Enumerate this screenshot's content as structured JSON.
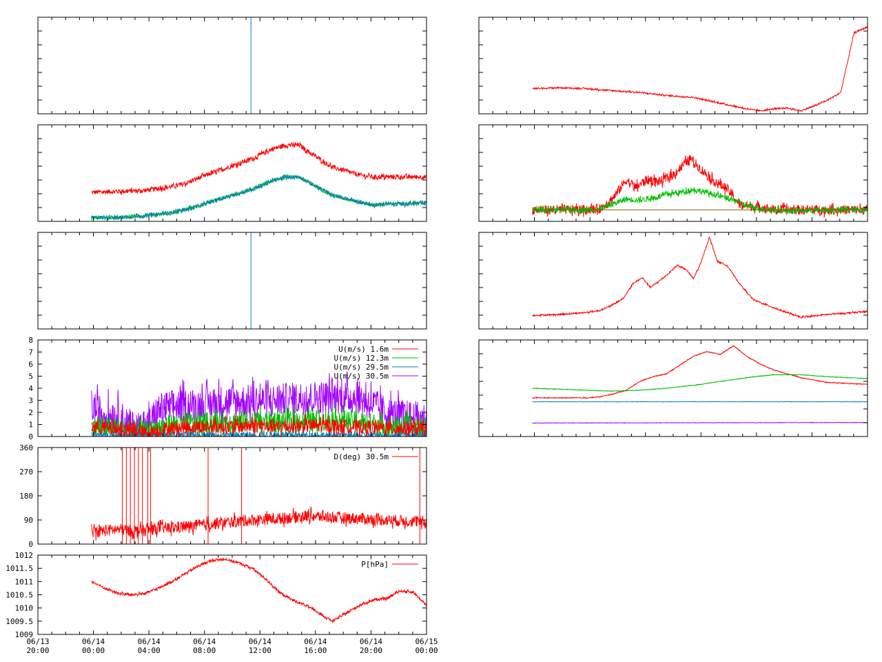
{
  "chart_data": [
    {
      "id": "p1",
      "type": "line",
      "series": [
        {
          "color": "#0080c0",
          "segments": [
            [
              [
                15.9,
                0
              ],
              [
                15.9,
                1
              ]
            ]
          ]
        }
      ],
      "xlim": [
        0,
        29
      ],
      "ylim": [
        0,
        1
      ]
    },
    {
      "id": "p2",
      "type": "line",
      "series": [
        {
          "color": "#ff0000",
          "noise": 0.025,
          "x": [
            4,
            6,
            8,
            10,
            11,
            12,
            14,
            16,
            17.5,
            18.5,
            19.5,
            20.5,
            22,
            24,
            25,
            26,
            27,
            29
          ],
          "y": [
            0.3,
            0.31,
            0.32,
            0.36,
            0.39,
            0.45,
            0.55,
            0.65,
            0.75,
            0.79,
            0.79,
            0.69,
            0.56,
            0.48,
            0.46,
            0.46,
            0.46,
            0.46
          ]
        },
        {
          "color": "#00c000",
          "noise": 0.02,
          "x": [
            4,
            6,
            8,
            10,
            11,
            12,
            14,
            16,
            17.5,
            18.5,
            19.5,
            20.5,
            22,
            24,
            25,
            26,
            27,
            29
          ],
          "y": [
            0.04,
            0.04,
            0.06,
            0.09,
            0.12,
            0.16,
            0.25,
            0.33,
            0.42,
            0.46,
            0.46,
            0.38,
            0.27,
            0.2,
            0.17,
            0.18,
            0.18,
            0.19
          ]
        },
        {
          "color": "#0080c0",
          "noise": 0.02,
          "x": [
            4,
            6,
            8,
            10,
            11,
            12,
            14,
            16,
            17.5,
            18.5,
            19.5,
            20.5,
            22,
            24,
            25,
            26,
            27,
            29
          ],
          "y": [
            0.04,
            0.04,
            0.06,
            0.09,
            0.12,
            0.16,
            0.25,
            0.33,
            0.42,
            0.46,
            0.46,
            0.38,
            0.27,
            0.2,
            0.17,
            0.18,
            0.18,
            0.19
          ]
        }
      ],
      "xlim": [
        0,
        29
      ],
      "ylim": [
        0,
        1
      ]
    },
    {
      "id": "p3",
      "type": "line",
      "series": [
        {
          "color": "#0080c0",
          "segments": [
            [
              [
                15.9,
                0
              ],
              [
                15.9,
                1
              ]
            ]
          ]
        }
      ],
      "xlim": [
        0,
        29
      ],
      "ylim": [
        0,
        1
      ]
    },
    {
      "id": "p4",
      "type": "line",
      "ylim": [
        0,
        8
      ],
      "xlim": [
        0,
        29
      ],
      "yticks": [
        "0",
        "1",
        "2",
        "3",
        "4",
        "5",
        "6",
        "7",
        "8"
      ],
      "legend": [
        "U(m/s)  1.6m",
        "U(m/s) 12.3m",
        "U(m/s) 29.5m",
        "U(m/s) 30.5m"
      ],
      "legend_position": "top-right",
      "series": [
        {
          "name": "U(m/s) 30.5m",
          "color": "#a000ff",
          "noise": 1.4,
          "x": [
            4,
            5,
            6,
            7,
            8,
            9,
            10,
            12,
            14,
            16,
            18,
            20,
            22,
            24,
            25,
            26,
            29
          ],
          "y": [
            2.5,
            1.8,
            1.7,
            0.8,
            0.6,
            2.2,
            2.5,
            2.6,
            2.9,
            2.9,
            3.0,
            3.2,
            3.3,
            3.2,
            2.7,
            1.9,
            1.4
          ]
        },
        {
          "name": "U(m/s) 12.3m",
          "color": "#00c000",
          "noise": 0.9,
          "x": [
            4,
            6,
            8,
            10,
            12,
            14,
            16,
            18,
            20,
            22,
            24,
            26,
            29
          ],
          "y": [
            0.8,
            0.7,
            0.4,
            1.0,
            1.1,
            1.2,
            1.3,
            1.2,
            1.3,
            1.4,
            1.2,
            0.9,
            0.7
          ]
        },
        {
          "name": "U(m/s) 29.5m",
          "color": "#0080c0",
          "noise": 0.3,
          "x": [
            4,
            29
          ],
          "y": [
            0.1,
            0.1
          ]
        },
        {
          "name": "U(m/s)  1.6m",
          "color": "#ff0000",
          "noise": 0.6,
          "x": [
            4,
            6,
            8,
            10,
            12,
            14,
            16,
            18,
            20,
            22,
            24,
            26,
            29
          ],
          "y": [
            0.8,
            0.6,
            0.3,
            0.7,
            0.8,
            0.8,
            0.9,
            0.8,
            0.9,
            0.9,
            0.8,
            0.7,
            0.6
          ]
        }
      ]
    },
    {
      "id": "p5",
      "type": "line",
      "ylim": [
        0,
        360
      ],
      "xlim": [
        0,
        29
      ],
      "yticks": [
        "0",
        "90",
        "180",
        "270",
        "360"
      ],
      "legend": [
        "D(deg)  30.5m"
      ],
      "legend_position": "top-right",
      "series": [
        {
          "name": "D(deg)  30.5m",
          "color": "#ff0000",
          "noise": 22,
          "x": [
            4,
            5,
            6,
            7,
            8,
            9,
            10,
            12,
            14,
            16,
            18,
            20,
            22,
            24,
            26,
            28,
            29
          ],
          "y": [
            45,
            50,
            55,
            50,
            50,
            60,
            60,
            70,
            80,
            90,
            95,
            105,
            100,
            95,
            90,
            85,
            80
          ]
        }
      ],
      "spikes": [
        [
          6.3,
          360
        ],
        [
          6.6,
          360
        ],
        [
          6.9,
          360
        ],
        [
          7.2,
          360
        ],
        [
          7.5,
          360
        ],
        [
          7.8,
          360
        ],
        [
          8.2,
          360
        ],
        [
          8.4,
          360
        ],
        [
          12.7,
          360
        ],
        [
          15.2,
          360
        ],
        [
          28.5,
          360
        ]
      ]
    },
    {
      "id": "p6",
      "type": "line",
      "ylim": [
        1009,
        1012
      ],
      "xlim": [
        0,
        29
      ],
      "yticks": [
        "1009",
        "1009.5",
        "1010",
        "1010.5",
        "1011",
        "1011.5",
        "1012"
      ],
      "legend": [
        "P[hPa]"
      ],
      "legend_position": "top-right",
      "x_tick_labels": [
        [
          "06/13",
          "20:00"
        ],
        [
          "06/14",
          "00:00"
        ],
        [
          "06/14",
          "04:00"
        ],
        [
          "06/14",
          "08:00"
        ],
        [
          "06/14",
          "12:00"
        ],
        [
          "06/14",
          "16:00"
        ],
        [
          "06/14",
          "20:00"
        ],
        [
          "06/15",
          "00:00"
        ]
      ],
      "series": [
        {
          "name": "P[hPa]",
          "color": "#ff0000",
          "noise": 0.05,
          "x": [
            4,
            5,
            6,
            7,
            8,
            9,
            10,
            11,
            12,
            13,
            14,
            15,
            16,
            17,
            18,
            19,
            20,
            21,
            22,
            23,
            24,
            25,
            26,
            27,
            28,
            29
          ],
          "y": [
            1011.0,
            1010.75,
            1010.55,
            1010.5,
            1010.55,
            1010.75,
            1011.0,
            1011.3,
            1011.6,
            1011.8,
            1011.85,
            1011.7,
            1011.5,
            1011.1,
            1010.6,
            1010.3,
            1010.1,
            1009.8,
            1009.5,
            1009.8,
            1010.1,
            1010.3,
            1010.35,
            1010.65,
            1010.6,
            1010.1
          ]
        }
      ]
    },
    {
      "id": "p7",
      "type": "line",
      "xlim": [
        0,
        29
      ],
      "ylim": [
        0,
        1
      ],
      "series": [
        {
          "color": "#ff0000",
          "noise": 0.008,
          "x": [
            4,
            6,
            8,
            10,
            12,
            14,
            16,
            18,
            20,
            21,
            22,
            23,
            24,
            25,
            26,
            27,
            28,
            29
          ],
          "y": [
            0.26,
            0.27,
            0.26,
            0.24,
            0.22,
            0.19,
            0.17,
            0.11,
            0.05,
            0.03,
            0.05,
            0.06,
            0.03,
            0.08,
            0.14,
            0.22,
            0.84,
            0.9
          ]
        }
      ]
    },
    {
      "id": "p8",
      "type": "line",
      "xlim": [
        0,
        29
      ],
      "ylim": [
        0,
        1
      ],
      "series": [
        {
          "color": "#ff0000",
          "noise": 0.05,
          "x": [
            4,
            8,
            9,
            10,
            11,
            11.7,
            12.5,
            13.5,
            14.5,
            15.2,
            15.8,
            16.5,
            17.5,
            18.5,
            19.5,
            21,
            22,
            23,
            29
          ],
          "y": [
            0.12,
            0.12,
            0.13,
            0.24,
            0.43,
            0.35,
            0.43,
            0.41,
            0.48,
            0.58,
            0.65,
            0.55,
            0.42,
            0.34,
            0.17,
            0.15,
            0.12,
            0.12,
            0.12
          ]
        },
        {
          "color": "#00c000",
          "noise": 0.03,
          "x": [
            4,
            8,
            9,
            10,
            11,
            12,
            13,
            14,
            15,
            16,
            17,
            18,
            19,
            20,
            21,
            22,
            23,
            29
          ],
          "y": [
            0.12,
            0.12,
            0.13,
            0.18,
            0.23,
            0.22,
            0.24,
            0.28,
            0.3,
            0.33,
            0.3,
            0.26,
            0.22,
            0.16,
            0.13,
            0.12,
            0.11,
            0.12
          ]
        },
        {
          "color": "#806000",
          "noise": 0.0,
          "x": [
            4,
            29
          ],
          "y": [
            0.12,
            0.12
          ]
        }
      ]
    },
    {
      "id": "p9",
      "type": "line",
      "xlim": [
        0,
        29
      ],
      "ylim": [
        0,
        1
      ],
      "series": [
        {
          "color": "#ff0000",
          "noise": 0.008,
          "x": [
            4,
            6,
            8,
            9,
            10,
            10.8,
            11.5,
            12.2,
            12.8,
            13.5,
            14.2,
            14.8,
            15.5,
            16,
            16.5,
            17.2,
            17.8,
            18.5,
            19.5,
            20.5,
            22,
            23,
            24,
            26,
            28,
            29
          ],
          "y": [
            0.14,
            0.15,
            0.17,
            0.19,
            0.25,
            0.32,
            0.47,
            0.53,
            0.43,
            0.5,
            0.58,
            0.66,
            0.61,
            0.52,
            0.66,
            0.95,
            0.7,
            0.66,
            0.46,
            0.3,
            0.22,
            0.17,
            0.12,
            0.15,
            0.17,
            0.18
          ]
        }
      ]
    },
    {
      "id": "p10",
      "type": "line",
      "xlim": [
        0,
        29
      ],
      "ylim": [
        0,
        1
      ],
      "series": [
        {
          "color": "#ff0000",
          "noise": 0.004,
          "x": [
            4,
            6,
            8,
            9,
            10,
            11,
            12,
            13,
            14,
            15,
            16,
            17,
            18,
            19,
            20,
            21,
            22,
            23,
            24,
            26,
            29
          ],
          "y": [
            0.4,
            0.4,
            0.4,
            0.41,
            0.44,
            0.48,
            0.57,
            0.62,
            0.65,
            0.74,
            0.83,
            0.88,
            0.85,
            0.94,
            0.83,
            0.75,
            0.69,
            0.65,
            0.61,
            0.56,
            0.54
          ]
        },
        {
          "color": "#00c000",
          "noise": 0.003,
          "x": [
            4,
            8,
            10,
            12,
            14,
            16,
            18,
            20,
            22,
            24,
            26,
            29
          ],
          "y": [
            0.5,
            0.48,
            0.47,
            0.48,
            0.5,
            0.53,
            0.57,
            0.61,
            0.64,
            0.64,
            0.62,
            0.6
          ]
        },
        {
          "color": "#0080c0",
          "noise": 0.002,
          "x": [
            4,
            29
          ],
          "y": [
            0.36,
            0.36
          ]
        },
        {
          "color": "#a000ff",
          "noise": 0.002,
          "x": [
            4,
            29
          ],
          "y": [
            0.14,
            0.145
          ]
        }
      ]
    }
  ]
}
